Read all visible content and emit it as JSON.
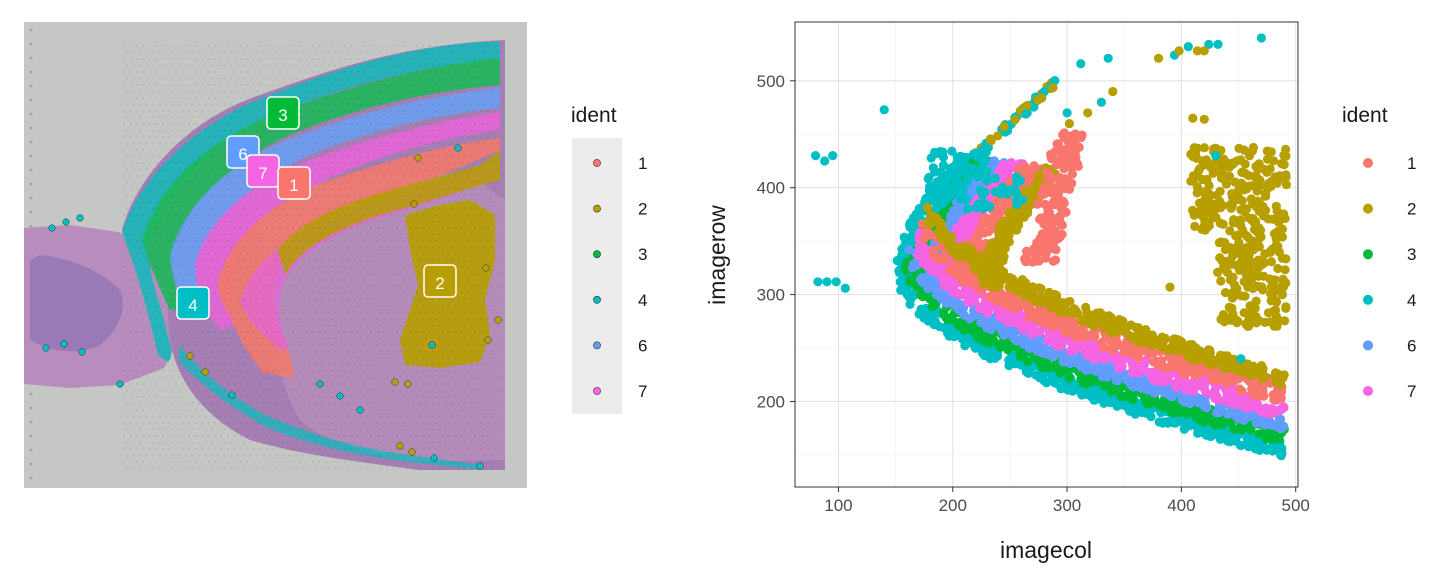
{
  "chart_data": [
    {
      "type": "scatter",
      "panel": "spatial-tissue-image",
      "background": "tissue-section-image",
      "legend": {
        "title": "ident",
        "placement": "right",
        "entries": [
          {
            "label": "1",
            "color": "#F8766D"
          },
          {
            "label": "2",
            "color": "#B79F00"
          },
          {
            "label": "3",
            "color": "#00BA38"
          },
          {
            "label": "4",
            "color": "#00BFC4"
          },
          {
            "label": "6",
            "color": "#619CFF"
          },
          {
            "label": "7",
            "color": "#F564E3"
          }
        ]
      },
      "cluster_labels": [
        "3",
        "6",
        "7",
        "1",
        "2",
        "4"
      ]
    },
    {
      "type": "scatter",
      "panel": "imagecol-vs-imagerow",
      "xlabel": "imagecol",
      "ylabel": "imagerow",
      "xlim": [
        62,
        502
      ],
      "ylim": [
        120,
        555
      ],
      "xticks": [
        "100",
        "200",
        "300",
        "400",
        "500"
      ],
      "yticks": [
        "200",
        "300",
        "400",
        "500"
      ],
      "grid": true,
      "legend": {
        "title": "ident",
        "placement": "right",
        "entries": [
          {
            "label": "1",
            "color": "#F8766D"
          },
          {
            "label": "2",
            "color": "#B79F00"
          },
          {
            "label": "3",
            "color": "#00BA38"
          },
          {
            "label": "4",
            "color": "#00BFC4"
          },
          {
            "label": "6",
            "color": "#619CFF"
          },
          {
            "label": "7",
            "color": "#F564E3"
          }
        ]
      }
    }
  ]
}
